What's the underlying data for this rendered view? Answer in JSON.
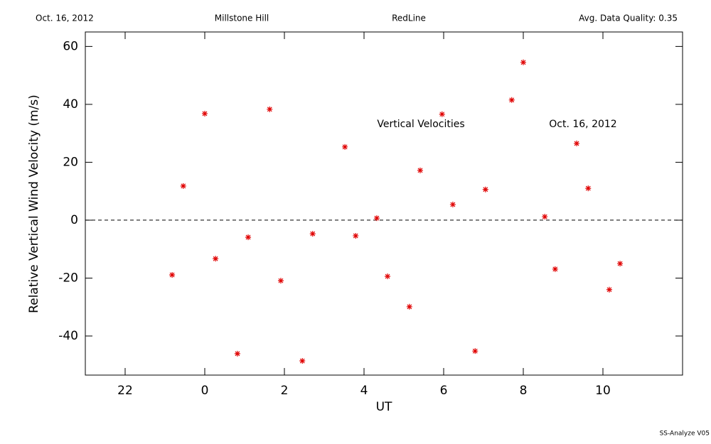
{
  "chart_data": {
    "type": "scatter",
    "header": [
      "Oct. 16, 2012",
      "Millstone Hill",
      "RedLine",
      "Avg. Data Quality: 0.35"
    ],
    "annotations": [
      "Vertical Velocities",
      "Oct. 16, 2012"
    ],
    "footer": "SS-Analyze V05",
    "xlabel": "UT",
    "ylabel": "Relative Vertical Wind Velocity (m/s)",
    "x": [
      -0.82,
      -0.54,
      0.0,
      0.27,
      0.82,
      1.09,
      1.63,
      1.91,
      2.45,
      2.71,
      3.52,
      3.79,
      4.32,
      4.59,
      5.14,
      5.41,
      5.96,
      6.23,
      6.79,
      7.05,
      7.71,
      8.0,
      8.54,
      8.8,
      9.34,
      9.63,
      10.16,
      10.43
    ],
    "values": [
      -18.9,
      11.8,
      36.8,
      -13.3,
      -46.1,
      -5.9,
      38.3,
      -20.9,
      -48.6,
      -4.7,
      25.3,
      -5.4,
      0.7,
      -19.4,
      -29.9,
      17.2,
      36.6,
      5.4,
      -45.2,
      10.6,
      41.5,
      54.5,
      1.2,
      -16.9,
      26.5,
      11.0,
      -24.0,
      -15.0
    ],
    "color": "#e00000",
    "xlim": [
      -3,
      12
    ],
    "xticks": [
      {
        "value": -2,
        "label": "22"
      },
      0,
      2,
      4,
      6,
      8,
      10
    ],
    "ylim": [
      -53.5,
      65
    ],
    "yticks": [
      -40,
      -20,
      0,
      20,
      40,
      60
    ],
    "hline": 0
  }
}
